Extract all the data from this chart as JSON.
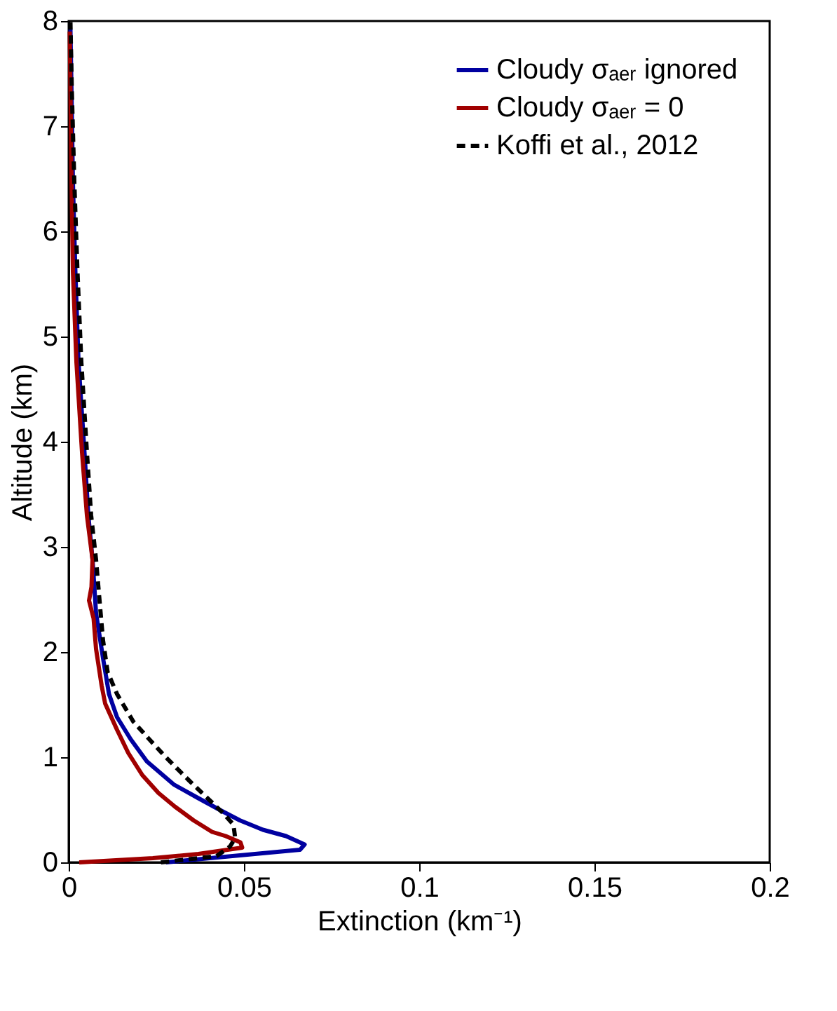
{
  "chart_data": {
    "type": "line",
    "xlabel": "Extinction (km⁻¹)",
    "ylabel": "Altitude (km)",
    "xlim": [
      0,
      0.2
    ],
    "xticks": [
      0,
      0.05,
      0.1,
      0.15,
      0.2
    ],
    "ylim": [
      0,
      8
    ],
    "yticks": [
      0,
      1,
      2,
      3,
      4,
      5,
      6,
      7,
      8
    ],
    "legend": "top right",
    "series": [
      {
        "name": "Cloudy σₐₑᵣ ignored",
        "color": "#0000a0",
        "line_style": "solid",
        "x": [
          0.0277,
          0.066,
          0.0673,
          0.062,
          0.0554,
          0.0488,
          0.0436,
          0.037,
          0.03,
          0.0223,
          0.0177,
          0.0138,
          0.0115,
          0.0098,
          0.0078,
          0.0068,
          0.0056,
          0.0045,
          0.0028,
          0.0019,
          0.0012,
          0.0008,
          0.0005
        ],
        "values": [
          0,
          0.12,
          0.17,
          0.25,
          0.31,
          0.4,
          0.49,
          0.61,
          0.74,
          0.96,
          1.17,
          1.38,
          1.6,
          1.94,
          2.37,
          2.88,
          3.3,
          3.9,
          4.76,
          5.62,
          6.47,
          7.33,
          7.92
        ]
      },
      {
        "name": "Cloudy σₐₑᵣ = 0",
        "color": "#a00000",
        "line_style": "solid",
        "x": [
          0.003,
          0.024,
          0.037,
          0.0495,
          0.049,
          0.0448,
          0.0409,
          0.0356,
          0.0303,
          0.0256,
          0.021,
          0.017,
          0.0138,
          0.0104,
          0.0094,
          0.0078,
          0.0071,
          0.0058,
          0.0065,
          0.0068,
          0.0052,
          0.0038,
          0.0022,
          0.0012,
          0.0008,
          0.0005,
          0.0003
        ],
        "values": [
          0,
          0.04,
          0.08,
          0.14,
          0.19,
          0.25,
          0.29,
          0.4,
          0.53,
          0.66,
          0.83,
          1.04,
          1.26,
          1.51,
          1.68,
          2.03,
          2.32,
          2.49,
          2.62,
          2.88,
          3.3,
          3.9,
          4.76,
          5.62,
          6.47,
          7.33,
          7.9
        ]
      },
      {
        "name": "Koffi et al., 2012",
        "color": "#000000",
        "line_style": "dashed",
        "x": [
          0.0263,
          0.0422,
          0.046,
          0.0475,
          0.047,
          0.044,
          0.0396,
          0.0343,
          0.0277,
          0.023,
          0.0184,
          0.0138,
          0.0111,
          0.0098,
          0.0089,
          0.0078,
          0.0064,
          0.0052,
          0.0036,
          0.0025,
          0.0016,
          0.0009,
          0.0005
        ],
        "values": [
          0,
          0.06,
          0.15,
          0.23,
          0.36,
          0.47,
          0.61,
          0.78,
          1.0,
          1.17,
          1.34,
          1.6,
          1.81,
          2.11,
          2.45,
          2.88,
          3.3,
          3.9,
          4.76,
          5.62,
          6.47,
          7.33,
          7.99
        ]
      }
    ]
  }
}
